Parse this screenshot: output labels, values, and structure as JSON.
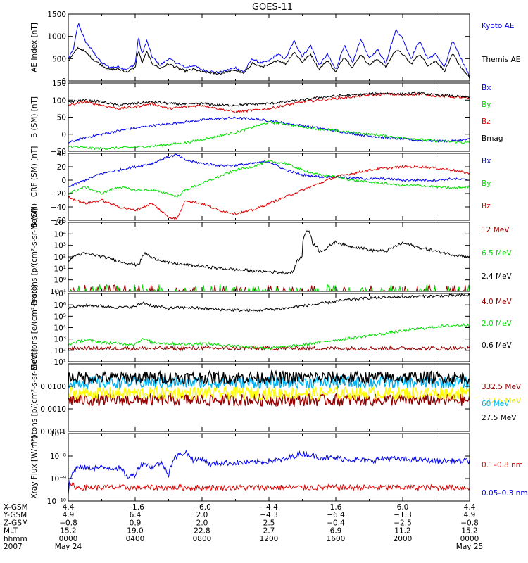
{
  "title": "GOES-11",
  "colors": {
    "black": "#000000",
    "blue": "#0000ee",
    "green": "#00dd00",
    "red": "#dd0000",
    "darkred": "#990000",
    "cyan": "#00b0f0",
    "yellow": "#ffff00"
  },
  "chart_data": [
    {
      "id": "ae",
      "type": "line",
      "ylabel": "AE Index [nT]",
      "ylim": [
        0,
        1500
      ],
      "yscale": "linear",
      "ticks": [
        0,
        500,
        1000,
        1500
      ],
      "tick_labels": [
        "0",
        "500",
        "1000",
        "1500"
      ],
      "x_hours": [
        0,
        0.3,
        0.6,
        1.0,
        1.5,
        2.0,
        2.5,
        3.0,
        3.5,
        4.0,
        4.2,
        4.4,
        4.7,
        5.0,
        5.5,
        6.0,
        6.5,
        7.0,
        7.5,
        8.0,
        9.0,
        10.0,
        10.5,
        11.0,
        11.5,
        12.0,
        12.5,
        13.0,
        13.5,
        14.0,
        14.5,
        15.0,
        15.5,
        16.0,
        16.5,
        17.0,
        17.5,
        18.0,
        18.5,
        19.0,
        19.3,
        19.6,
        20.0,
        20.5,
        21.0,
        21.5,
        22.0,
        22.5,
        23.0,
        23.5,
        24.0
      ],
      "series": [
        {
          "name": "Kyoto AE",
          "color": "blue",
          "values": [
            500,
            700,
            1300,
            900,
            650,
            400,
            300,
            320,
            260,
            380,
            1000,
            600,
            900,
            550,
            350,
            500,
            400,
            300,
            350,
            250,
            180,
            300,
            200,
            500,
            400,
            450,
            600,
            500,
            900,
            550,
            800,
            350,
            600,
            250,
            800,
            400,
            950,
            500,
            700,
            400,
            800,
            1150,
            950,
            500,
            900,
            500,
            600,
            300,
            900,
            500,
            100
          ]
        },
        {
          "name": "Themis AE",
          "color": "black",
          "values": [
            450,
            600,
            750,
            650,
            480,
            350,
            250,
            270,
            200,
            300,
            700,
            400,
            650,
            400,
            280,
            380,
            300,
            220,
            260,
            200,
            160,
            240,
            160,
            400,
            320,
            350,
            470,
            380,
            650,
            420,
            600,
            260,
            460,
            200,
            550,
            300,
            600,
            350,
            500,
            300,
            520,
            700,
            600,
            380,
            600,
            350,
            450,
            220,
            600,
            300,
            60
          ]
        }
      ]
    },
    {
      "id": "b",
      "type": "line",
      "ylabel": "B (SM) [nT]",
      "ylim": [
        -50,
        150
      ],
      "yscale": "linear",
      "ticks": [
        -50,
        0,
        50,
        100,
        150
      ],
      "tick_labels": [
        "−50",
        "0",
        "50",
        "100",
        "150"
      ],
      "x_hours": [
        0,
        1,
        2,
        3,
        4,
        5,
        6,
        7,
        8,
        9,
        10,
        11,
        12,
        13,
        14,
        15,
        16,
        17,
        18,
        19,
        20,
        21,
        22,
        23,
        24
      ],
      "series": [
        {
          "name": "Bx",
          "color": "blue",
          "values": [
            -25,
            -10,
            0,
            10,
            18,
            25,
            30,
            36,
            42,
            46,
            48,
            45,
            40,
            32,
            25,
            18,
            10,
            2,
            -5,
            -10,
            -14,
            -18,
            -20,
            -20,
            -15
          ]
        },
        {
          "name": "By",
          "color": "green",
          "values": [
            -35,
            -40,
            -42,
            -40,
            -38,
            -35,
            -30,
            -25,
            -15,
            -5,
            5,
            20,
            35,
            30,
            22,
            15,
            10,
            5,
            0,
            -5,
            -10,
            -15,
            -20,
            -22,
            -25
          ]
        },
        {
          "name": "Bz",
          "color": "red",
          "values": [
            85,
            95,
            85,
            75,
            80,
            90,
            75,
            80,
            85,
            75,
            65,
            70,
            75,
            85,
            95,
            100,
            105,
            110,
            115,
            118,
            115,
            118,
            112,
            110,
            105
          ]
        },
        {
          "name": "Bmag",
          "color": "black",
          "values": [
            95,
            100,
            95,
            85,
            90,
            95,
            90,
            88,
            90,
            85,
            85,
            88,
            90,
            95,
            100,
            108,
            112,
            115,
            118,
            120,
            118,
            120,
            115,
            112,
            108
          ]
        }
      ]
    },
    {
      "id": "bdiff",
      "type": "line",
      "ylabel": "B (SM)−CRF (SM) [nT]",
      "ylim": [
        -60,
        40
      ],
      "yscale": "linear",
      "ticks": [
        -60,
        -40,
        -20,
        0,
        20,
        40
      ],
      "tick_labels": [
        "−60",
        "−40",
        "−20",
        "0",
        "20",
        "40"
      ],
      "x_hours": [
        0,
        1,
        2,
        3,
        4,
        5,
        6,
        6.5,
        7,
        8,
        9,
        10,
        11,
        12,
        13,
        14,
        15,
        16,
        17,
        18,
        19,
        20,
        21,
        22,
        23,
        24
      ],
      "series": [
        {
          "name": "Bx",
          "color": "blue",
          "values": [
            -10,
            0,
            10,
            15,
            20,
            25,
            35,
            38,
            30,
            25,
            22,
            22,
            25,
            28,
            15,
            8,
            5,
            5,
            3,
            2,
            2,
            0,
            0,
            0,
            2,
            0
          ]
        },
        {
          "name": "By",
          "color": "green",
          "values": [
            -20,
            -10,
            -20,
            -10,
            -15,
            -15,
            -20,
            -25,
            -15,
            -5,
            5,
            15,
            20,
            28,
            25,
            15,
            8,
            5,
            0,
            -3,
            -5,
            -8,
            -8,
            -10,
            -12,
            -10
          ]
        },
        {
          "name": "Bz",
          "color": "red",
          "values": [
            -25,
            -35,
            -30,
            -40,
            -45,
            -35,
            -55,
            -58,
            -30,
            -35,
            -45,
            -50,
            -45,
            -35,
            -25,
            -15,
            -5,
            5,
            10,
            15,
            18,
            20,
            20,
            18,
            15,
            10
          ]
        }
      ]
    },
    {
      "id": "protons",
      "type": "line",
      "ylabel": "Protons [p/(cm²-s-sr-MeV)]",
      "ylim": [
        0.1,
        100000
      ],
      "yscale": "log",
      "ticks": [
        0.1,
        1,
        10,
        100,
        1000,
        10000,
        100000
      ],
      "tick_labels": [
        "10⁻¹",
        "10⁰",
        "10¹",
        "10²",
        "10³",
        "10⁴",
        "10⁵"
      ],
      "x_hours": [
        0,
        0.5,
        1,
        2,
        3,
        4,
        4.3,
        4.6,
        5,
        6,
        7,
        8,
        9,
        10,
        11,
        12,
        13,
        13.5,
        14,
        14.3,
        14.6,
        15,
        15.5,
        16,
        16.5,
        17,
        18,
        19,
        19.5,
        20,
        21,
        22,
        23,
        24
      ],
      "series": [
        {
          "name": "12 MeV",
          "color": "darkred",
          "values": []
        },
        {
          "name": "6.5 MeV",
          "color": "green",
          "values": []
        },
        {
          "name": "2.4 MeV",
          "color": "black",
          "values": [
            30,
            150,
            200,
            100,
            40,
            20,
            30,
            200,
            80,
            30,
            20,
            15,
            10,
            8,
            6,
            5,
            4,
            5,
            100,
            20000,
            1500,
            300,
            500,
            2000,
            1000,
            800,
            400,
            300,
            700,
            1500,
            600,
            300,
            150,
            100
          ]
        }
      ]
    },
    {
      "id": "electrons",
      "type": "line",
      "ylabel": "Electrons [e/(cm²-s-sr)]",
      "ylim": [
        10,
        10000000
      ],
      "yscale": "log",
      "ticks": [
        10,
        100,
        1000,
        10000,
        100000,
        1000000,
        10000000
      ],
      "tick_labels": [
        "10¹",
        "10²",
        "10³",
        "10⁴",
        "10⁵",
        "10⁶",
        "10⁷"
      ],
      "x_hours": [
        0,
        1,
        2,
        3,
        4,
        4.5,
        5,
        6,
        7,
        8,
        9,
        10,
        11,
        12,
        13,
        14,
        15,
        16,
        17,
        18,
        19,
        20,
        21,
        22,
        23,
        24
      ],
      "series": [
        {
          "name": "4.0 MeV",
          "color": "darkred",
          "values": []
        },
        {
          "name": "2.0 MeV",
          "color": "green",
          "values": [
            300,
            800,
            500,
            400,
            350,
            1000,
            500,
            400,
            350,
            400,
            300,
            250,
            200,
            150,
            200,
            300,
            500,
            800,
            1200,
            2000,
            3000,
            5000,
            8000,
            12000,
            15000,
            18000
          ]
        },
        {
          "name": "0.6 MeV",
          "color": "black",
          "values": [
            500000,
            900000,
            800000,
            600000,
            700000,
            1500000,
            800000,
            500000,
            600000,
            500000,
            400000,
            350000,
            300000,
            400000,
            500000,
            800000,
            1200000,
            2000000,
            3000000,
            4000000,
            4500000,
            5000000,
            5500000,
            6000000,
            6500000,
            7000000
          ]
        }
      ]
    },
    {
      "id": "hiprotons",
      "type": "line",
      "ylabel": "Protons [p/(cm²-s-sr-MeV)]",
      "ylim": [
        0.0001,
        0.1
      ],
      "yscale": "log",
      "ticks": [
        0.0001,
        0.001,
        0.01
      ],
      "tick_labels": [
        "0.0001",
        "0.0010",
        "0.0100"
      ],
      "series": [
        {
          "name": "332.5 MeV",
          "color": "darkred",
          "level": 0.0025
        },
        {
          "name": "122.5 MeV",
          "color": "yellow",
          "level": 0.005
        },
        {
          "name": "60 MeV",
          "color": "cyan",
          "level": 0.015
        },
        {
          "name": "27.5 MeV",
          "color": "black",
          "level": 0.025
        }
      ]
    },
    {
      "id": "xray",
      "type": "line",
      "ylabel": "Xray Flux [W/m²]",
      "ylim": [
        1e-10,
        1e-07
      ],
      "yscale": "log",
      "ticks": [
        1e-10,
        1e-09,
        1e-08,
        1e-07
      ],
      "tick_labels": [
        "10⁻¹⁰",
        "10⁻⁹",
        "10⁻⁸",
        "10⁻⁷"
      ],
      "x_hours": [
        0,
        0.3,
        0.5,
        1,
        2,
        3,
        3.5,
        4,
        4.5,
        5,
        5.5,
        6,
        6.5,
        7,
        7.5,
        8,
        8.5,
        9,
        9.5,
        10,
        11,
        12,
        13,
        13.5,
        14,
        15,
        16,
        17,
        18,
        19,
        20,
        21,
        22,
        23,
        24
      ],
      "series": [
        {
          "name": "0.1–0.8 nm",
          "color": "red",
          "values": [
            5e-10,
            5e-10,
            4e-10,
            4e-10,
            4e-10,
            4e-10,
            4e-10,
            4e-10,
            4e-10,
            4e-10,
            4e-10,
            4e-10,
            4e-10,
            4e-10,
            4e-10,
            4e-10,
            4e-10,
            4e-10,
            4e-10,
            4e-10,
            4e-10,
            4e-10,
            4e-10,
            4e-10,
            4e-10,
            4e-10,
            4e-10,
            4e-10,
            4e-10,
            4e-10,
            4e-10,
            4e-10,
            4e-10,
            4e-10,
            4e-10
          ]
        },
        {
          "name": "0.05–0.3 nm",
          "color": "blue",
          "values": [
            2e-10,
            2e-09,
            3e-09,
            3e-09,
            3e-09,
            3e-09,
            1.2e-09,
            1.5e-09,
            5e-09,
            3e-09,
            5e-09,
            1.5e-09,
            1e-08,
            1.5e-08,
            6e-09,
            8e-09,
            4e-09,
            5e-09,
            5e-09,
            5e-09,
            5e-09,
            6e-09,
            7e-09,
            1e-08,
            1.3e-08,
            9e-09,
            8e-09,
            7e-09,
            6e-09,
            8e-09,
            7e-09,
            7e-09,
            6e-09,
            6e-09,
            6e-09
          ]
        }
      ]
    }
  ],
  "ephemeris": {
    "rows": [
      {
        "label": "X-GSM",
        "values": [
          "4.4",
          "−1.6",
          "−6.0",
          "−4.4",
          "1.6",
          "6.0",
          "4.4"
        ]
      },
      {
        "label": "Y-GSM",
        "values": [
          "4.9",
          "6.4",
          "2.0",
          "−4.3",
          "−6.4",
          "−1.3",
          "4.9"
        ]
      },
      {
        "label": "Z-GSM",
        "values": [
          "−0.8",
          "0.9",
          "2.0",
          "2.5",
          "−0.4",
          "−2.5",
          "−0.8"
        ]
      },
      {
        "label": "MLT",
        "values": [
          "15.2",
          "19.0",
          "22.8",
          "2.7",
          "6.9",
          "11.2",
          "15.2"
        ]
      },
      {
        "label": "hhmm",
        "values": [
          "0000",
          "0400",
          "0800",
          "1200",
          "1600",
          "2000",
          "0000"
        ]
      },
      {
        "label": "2007",
        "values": [
          "May 24",
          "",
          "",
          "",
          "",
          "",
          "May 25"
        ]
      }
    ]
  }
}
